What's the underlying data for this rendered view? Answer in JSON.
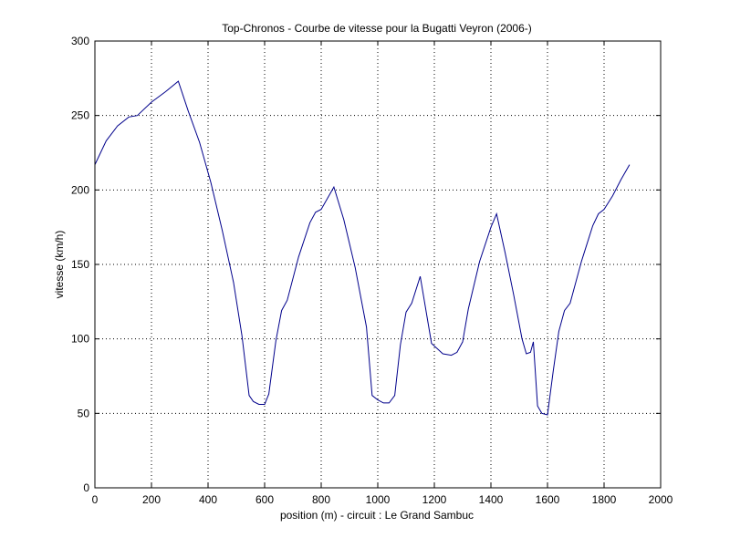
{
  "chart_data": {
    "type": "line",
    "title": "Top-Chronos - Courbe de vitesse pour la Bugatti Veyron (2006-)",
    "xlabel": "position (m) - circuit : Le Grand Sambuc",
    "ylabel": "vitesse (km/h)",
    "xlim": [
      0,
      2000
    ],
    "ylim": [
      0,
      300
    ],
    "xticks": [
      0,
      200,
      400,
      600,
      800,
      1000,
      1200,
      1400,
      1600,
      1800,
      2000
    ],
    "yticks": [
      0,
      50,
      100,
      150,
      200,
      250,
      300
    ],
    "grid": true,
    "line_color": "#00008b",
    "series": [
      {
        "x": [
          0,
          40,
          80,
          120,
          150,
          200,
          250,
          295,
          330,
          370,
          410,
          450,
          490,
          520,
          545,
          560,
          580,
          600,
          615,
          640,
          660,
          680,
          720,
          760,
          780,
          800,
          845,
          880,
          920,
          960,
          980,
          1000,
          1020,
          1040,
          1060,
          1080,
          1100,
          1120,
          1150,
          1190,
          1230,
          1260,
          1280,
          1300,
          1320,
          1360,
          1400,
          1420,
          1450,
          1480,
          1510,
          1525,
          1540,
          1550,
          1565,
          1580,
          1600,
          1620,
          1640,
          1660,
          1680,
          1720,
          1760,
          1780,
          1800,
          1830,
          1860,
          1890
        ],
        "y": [
          217,
          233,
          243,
          249,
          250,
          259,
          266,
          273,
          253,
          232,
          205,
          173,
          138,
          102,
          62,
          58,
          56,
          56,
          63,
          99,
          119,
          126,
          155,
          178,
          185,
          187,
          202,
          180,
          148,
          108,
          62,
          59,
          57,
          57,
          62,
          96,
          118,
          124,
          142,
          97,
          90,
          89,
          91,
          98,
          120,
          152,
          175,
          184,
          158,
          130,
          100,
          90,
          91,
          98,
          55,
          50,
          49,
          78,
          105,
          119,
          124,
          152,
          176,
          184,
          187,
          196,
          207,
          217
        ]
      }
    ]
  }
}
